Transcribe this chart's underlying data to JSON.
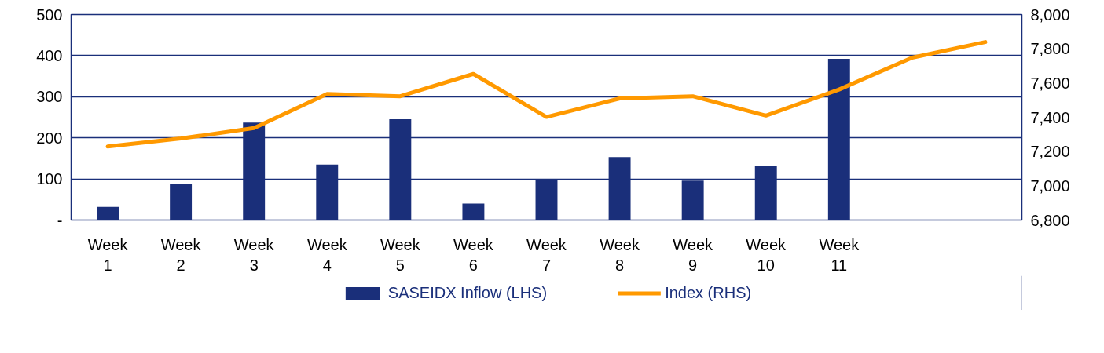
{
  "chart_data": {
    "type": "bar",
    "categories": [
      "Week\n1",
      "Week\n2",
      "Week\n3",
      "Week\n4",
      "Week\n5",
      "Week\n6",
      "Week\n7",
      "Week\n8",
      "Week\n9",
      "Week\n10",
      "Week\n11",
      null,
      null
    ],
    "series": [
      {
        "name": "SASEIDX Inflow (LHS)",
        "color": "#1a2f7a",
        "values": [
          32,
          88,
          237,
          135,
          245,
          40,
          97,
          153,
          96,
          132,
          392,
          null,
          null
        ]
      },
      {
        "name": "Index (RHS)",
        "type": "line",
        "axis": "y2",
        "color": "#ff9900",
        "values": [
          7229,
          7276,
          7337,
          7536,
          7523,
          7653,
          7402,
          7510,
          7523,
          7410,
          7562,
          7748,
          7839
        ]
      }
    ],
    "ylim": [
      0,
      500
    ],
    "yticks": [
      {
        "value": 0,
        "label": "-"
      },
      100,
      200,
      300,
      400,
      500
    ],
    "y2lim": [
      6800,
      8000
    ],
    "y2ticks": [
      {
        "value": 6800,
        "label": "6,800"
      },
      {
        "value": 7000,
        "label": "7,000"
      },
      {
        "value": 7200,
        "label": "7,200"
      },
      {
        "value": 7400,
        "label": "7,400"
      },
      {
        "value": 7600,
        "label": "7,600"
      },
      {
        "value": 7800,
        "label": "7,800"
      },
      {
        "value": 8000,
        "label": "8,000"
      }
    ],
    "grid": "y",
    "legend": "bottom"
  }
}
